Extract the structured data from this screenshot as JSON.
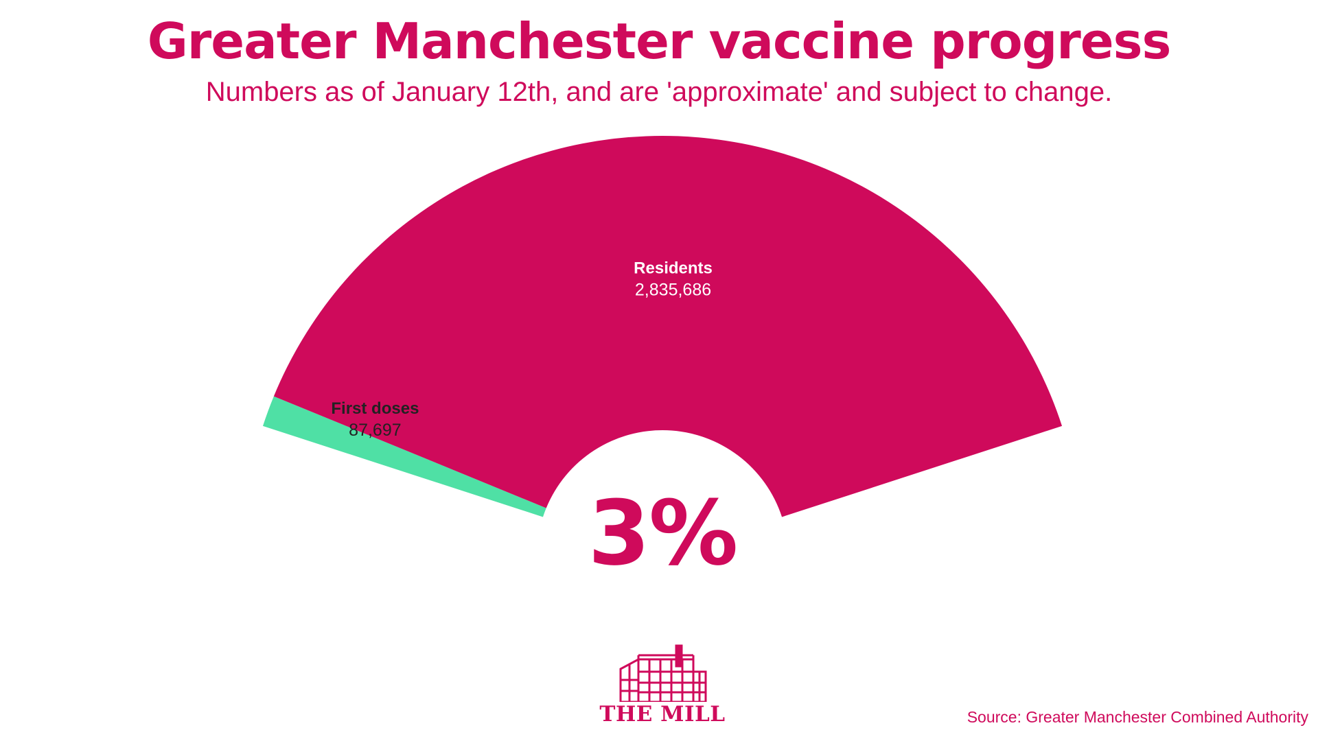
{
  "title": "Greater Manchester vaccine progress",
  "subtitle": "Numbers as of January 12th, and are 'approximate' and subject to change.",
  "chart_data": {
    "type": "pie",
    "variant": "semi-donut gauge",
    "slices": [
      {
        "name": "First doses",
        "value": 87697,
        "value_label": "87,697",
        "color": "#4fe0a5"
      },
      {
        "name": "Residents",
        "value": 2835686,
        "value_label": "2,835,686",
        "color": "#cf0a5b"
      }
    ],
    "center_label": "3%",
    "legend": "none"
  },
  "logo": {
    "name": "THE MILL",
    "icon": "mill-building-icon",
    "color": "#cf0a5b"
  },
  "source": "Source: Greater Manchester Combined Authority",
  "colors": {
    "accent": "#cf0a5b",
    "background": "#ffffff",
    "first_doses": "#4fe0a5",
    "label_dark": "#222222",
    "label_light": "#ffffff"
  }
}
